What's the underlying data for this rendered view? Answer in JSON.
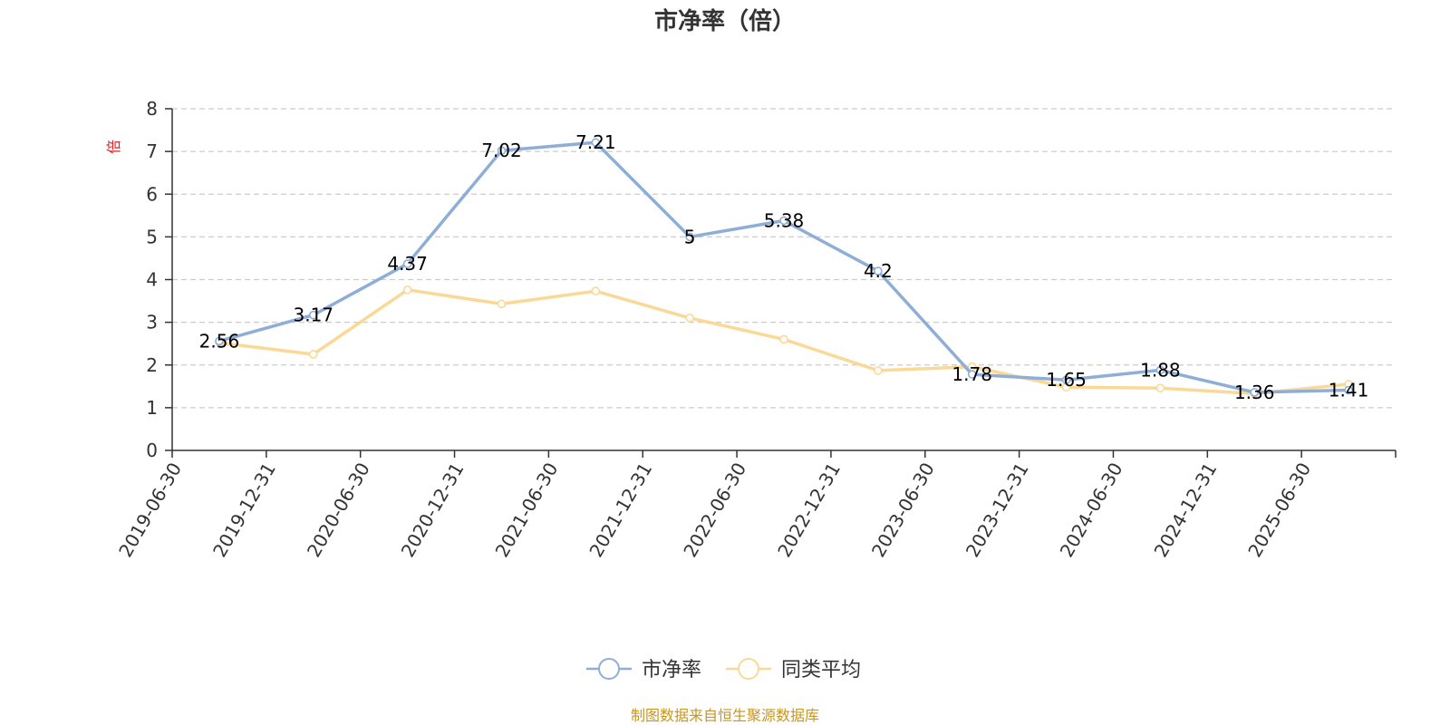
{
  "chart_data": {
    "type": "line",
    "title": "市净率（倍）",
    "ylabel": "倍",
    "ylim": [
      0,
      8
    ],
    "yticks": [
      "0",
      "1",
      "2",
      "3",
      "4",
      "5",
      "6",
      "7",
      "8"
    ],
    "grid": true,
    "legend_position": "bottom-center",
    "categories": [
      "2019-06-30",
      "2019-12-31",
      "2020-06-30",
      "2020-12-31",
      "2021-06-30",
      "2021-12-31",
      "2022-06-30",
      "2022-12-31",
      "2023-06-30",
      "2023-12-31",
      "2024-06-30",
      "2024-12-31",
      "2025-06-30"
    ],
    "series": [
      {
        "name": "市净率",
        "color": "#8eaed8",
        "values": [
          2.56,
          3.17,
          4.37,
          7.02,
          7.21,
          5,
          5.38,
          4.2,
          1.78,
          1.65,
          1.88,
          1.36,
          1.41
        ],
        "labels": [
          "2.56",
          "3.17",
          "4.37",
          "7.02",
          "7.21",
          "5",
          "5.38",
          "4.2",
          "1.78",
          "1.65",
          "1.88",
          "1.36",
          "1.41"
        ]
      },
      {
        "name": "同类平均",
        "color": "#fad997",
        "values": [
          2.52,
          2.25,
          3.76,
          3.43,
          3.73,
          3.1,
          2.6,
          1.87,
          1.96,
          1.48,
          1.46,
          1.33,
          1.55
        ]
      }
    ]
  },
  "source_note": "制图数据来自恒生聚源数据库",
  "colors": {
    "axis": "#333333",
    "grid": "#cccccc",
    "unit": "#e02020",
    "source": "#c8961e"
  }
}
